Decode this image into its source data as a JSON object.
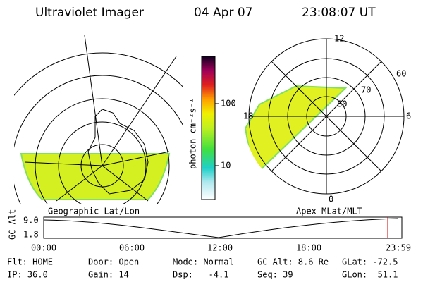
{
  "header": {
    "title": "Ultraviolet Imager",
    "date": "04 Apr 07",
    "time": "23:08:07 UT"
  },
  "left_map": {
    "label": "Geographic Lat/Lon"
  },
  "colorbar": {
    "label": "photon cm⁻²s⁻¹",
    "ticks": [
      "100",
      "10"
    ]
  },
  "polar": {
    "label": "Apex MLat/MLT",
    "mlt_labels": [
      "12",
      "18",
      "6",
      "0"
    ],
    "mlat_labels": [
      "60",
      "70",
      "80"
    ]
  },
  "altitude_panel": {
    "ylabel": "GC Alt",
    "yticks": [
      "9.0",
      "1.8"
    ],
    "xticks": [
      "00:00",
      "06:00",
      "12:00",
      "18:00",
      "23:59"
    ]
  },
  "status": {
    "rows": [
      [
        "Flt: HOME",
        "Door: Open",
        "Mode: Normal",
        "GC Alt: 8.6 Re",
        "GLat: -72.5"
      ],
      [
        "IP: 36.0",
        "Gain: 14",
        "Dsp:   -4.1",
        "Seq: 39",
        "GLon:  51.1"
      ]
    ]
  }
}
